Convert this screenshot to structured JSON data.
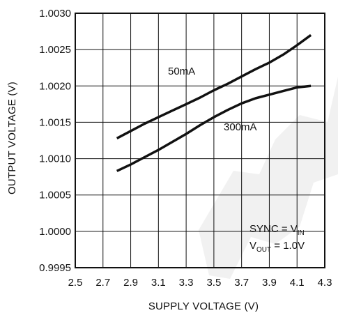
{
  "chart_data": {
    "type": "line",
    "xlabel": "SUPPLY VOLTAGE (V)",
    "ylabel": "OUTPUT VOLTAGE (V)",
    "xlim": [
      2.5,
      4.3
    ],
    "ylim": [
      0.9995,
      1.003
    ],
    "x_ticks": [
      "2.5",
      "2.7",
      "2.9",
      "3.1",
      "3.3",
      "3.5",
      "3.7",
      "3.9",
      "4.1",
      "4.3"
    ],
    "y_ticks": [
      "0.9995",
      "1.0000",
      "1.0005",
      "1.0010",
      "1.0015",
      "1.0020",
      "1.0025",
      "1.0030"
    ],
    "grid": true,
    "series": [
      {
        "name": "50mA",
        "x": [
          2.8,
          2.9,
          3.0,
          3.1,
          3.2,
          3.3,
          3.4,
          3.5,
          3.6,
          3.7,
          3.8,
          3.9,
          4.0,
          4.1,
          4.2
        ],
        "y": [
          1.00128,
          1.00138,
          1.00148,
          1.00157,
          1.00166,
          1.00175,
          1.00184,
          1.00194,
          1.00203,
          1.00213,
          1.00223,
          1.00232,
          1.00243,
          1.00256,
          1.0027
        ]
      },
      {
        "name": "300mA",
        "x": [
          2.8,
          2.9,
          3.0,
          3.1,
          3.2,
          3.3,
          3.4,
          3.5,
          3.6,
          3.7,
          3.8,
          3.9,
          4.0,
          4.1,
          4.2
        ],
        "y": [
          1.00083,
          1.00092,
          1.00102,
          1.00112,
          1.00123,
          1.00134,
          1.00146,
          1.00157,
          1.00167,
          1.00176,
          1.00183,
          1.00188,
          1.00193,
          1.00198,
          1.002
        ]
      }
    ],
    "annotations": {
      "line1_main": "SYNC = V",
      "line1_sub": "IN",
      "line2_main": "V",
      "line2_sub": "OUT",
      "line2_rest": " = 1.0V"
    }
  }
}
